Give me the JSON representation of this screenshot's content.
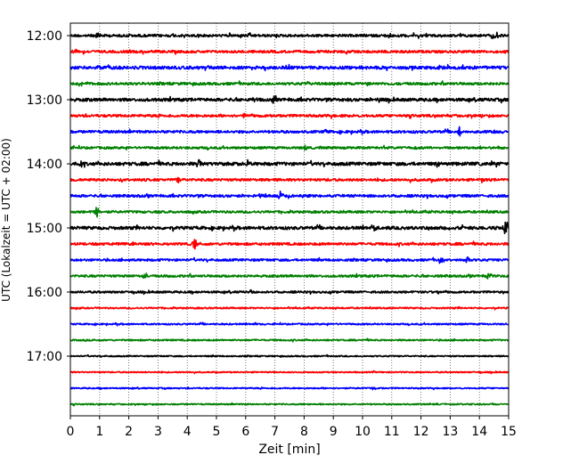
{
  "chart_data": {
    "type": "line",
    "title": "",
    "xlabel": "Zeit  [min]",
    "ylabel": "UTC (Lokalzeit = UTC + 02:00)",
    "xlim": [
      0,
      15
    ],
    "x_ticks": [
      "0",
      "1",
      "2",
      "3",
      "4",
      "5",
      "6",
      "7",
      "8",
      "9",
      "10",
      "11",
      "12",
      "13",
      "14",
      "15"
    ],
    "y_ticks": [
      "12:00",
      "13:00",
      "14:00",
      "15:00",
      "16:00",
      "17:00"
    ],
    "grid": "vertical-dotted",
    "trace_interval_min": 15,
    "colors": [
      "#000000",
      "#ff0000",
      "#0000ff",
      "#008000"
    ],
    "series": [
      {
        "start": "12:00",
        "color": "#000000",
        "amplitude": 1.0,
        "events": [
          [
            0.95,
            3
          ],
          [
            2.05,
            2
          ],
          [
            4.4,
            2
          ],
          [
            10.9,
            2
          ],
          [
            14.45,
            4
          ],
          [
            14.6,
            3
          ]
        ]
      },
      {
        "start": "12:15",
        "color": "#ff0000",
        "amplitude": 1.0,
        "events": [
          [
            0.15,
            2
          ]
        ]
      },
      {
        "start": "12:30",
        "color": "#0000ff",
        "amplitude": 1.2,
        "events": [
          [
            1.0,
            2
          ],
          [
            4.6,
            3
          ],
          [
            6.2,
            2
          ],
          [
            10.0,
            2
          ],
          [
            12.7,
            2
          ]
        ]
      },
      {
        "start": "12:45",
        "color": "#008000",
        "amplitude": 1.0,
        "events": [
          [
            0.35,
            2
          ],
          [
            8.1,
            2
          ]
        ]
      },
      {
        "start": "13:00",
        "color": "#000000",
        "amplitude": 1.2,
        "events": [
          [
            6.95,
            4
          ],
          [
            6.3,
            2
          ],
          [
            10.55,
            2
          ]
        ]
      },
      {
        "start": "13:15",
        "color": "#ff0000",
        "amplitude": 1.0,
        "events": [
          [
            5.95,
            2
          ]
        ]
      },
      {
        "start": "13:30",
        "color": "#0000ff",
        "amplitude": 1.0,
        "events": [
          [
            8.75,
            2
          ],
          [
            13.3,
            5
          ],
          [
            14.5,
            2
          ]
        ]
      },
      {
        "start": "13:45",
        "color": "#008000",
        "amplitude": 0.9,
        "events": [
          [
            8.0,
            2
          ]
        ]
      },
      {
        "start": "14:00",
        "color": "#000000",
        "amplitude": 1.3,
        "events": [
          [
            0.35,
            3
          ],
          [
            4.4,
            5
          ],
          [
            6.05,
            3
          ],
          [
            12.55,
            2
          ]
        ]
      },
      {
        "start": "14:15",
        "color": "#ff0000",
        "amplitude": 1.0,
        "events": [
          [
            3.7,
            3
          ],
          [
            14.1,
            2
          ]
        ]
      },
      {
        "start": "14:30",
        "color": "#0000ff",
        "amplitude": 1.0,
        "events": [
          [
            7.2,
            4
          ],
          [
            6.5,
            2
          ]
        ]
      },
      {
        "start": "14:45",
        "color": "#008000",
        "amplitude": 0.9,
        "events": [
          [
            0.9,
            5
          ]
        ]
      },
      {
        "start": "15:00",
        "color": "#000000",
        "amplitude": 1.2,
        "events": [
          [
            14.9,
            8
          ],
          [
            10.4,
            2
          ]
        ]
      },
      {
        "start": "15:15",
        "color": "#ff0000",
        "amplitude": 1.0,
        "events": [
          [
            4.25,
            5
          ]
        ]
      },
      {
        "start": "15:30",
        "color": "#0000ff",
        "amplitude": 0.9,
        "events": [
          [
            12.65,
            3
          ],
          [
            13.6,
            2
          ]
        ]
      },
      {
        "start": "15:45",
        "color": "#008000",
        "amplitude": 0.9,
        "events": [
          [
            2.55,
            3
          ],
          [
            14.3,
            3
          ]
        ]
      },
      {
        "start": "16:00",
        "color": "#000000",
        "amplitude": 0.8,
        "events": [
          [
            14.8,
            2
          ],
          [
            6.2,
            2
          ]
        ]
      },
      {
        "start": "16:15",
        "color": "#ff0000",
        "amplitude": 0.6,
        "events": []
      },
      {
        "start": "16:30",
        "color": "#0000ff",
        "amplitude": 0.6,
        "events": []
      },
      {
        "start": "16:45",
        "color": "#008000",
        "amplitude": 0.6,
        "events": []
      },
      {
        "start": "17:00",
        "color": "#000000",
        "amplitude": 0.5,
        "events": []
      },
      {
        "start": "17:15",
        "color": "#ff0000",
        "amplitude": 0.5,
        "events": []
      },
      {
        "start": "17:30",
        "color": "#0000ff",
        "amplitude": 0.5,
        "events": [
          [
            10.4,
            2
          ]
        ]
      },
      {
        "start": "17:45",
        "color": "#008000",
        "amplitude": 0.5,
        "events": []
      }
    ]
  }
}
